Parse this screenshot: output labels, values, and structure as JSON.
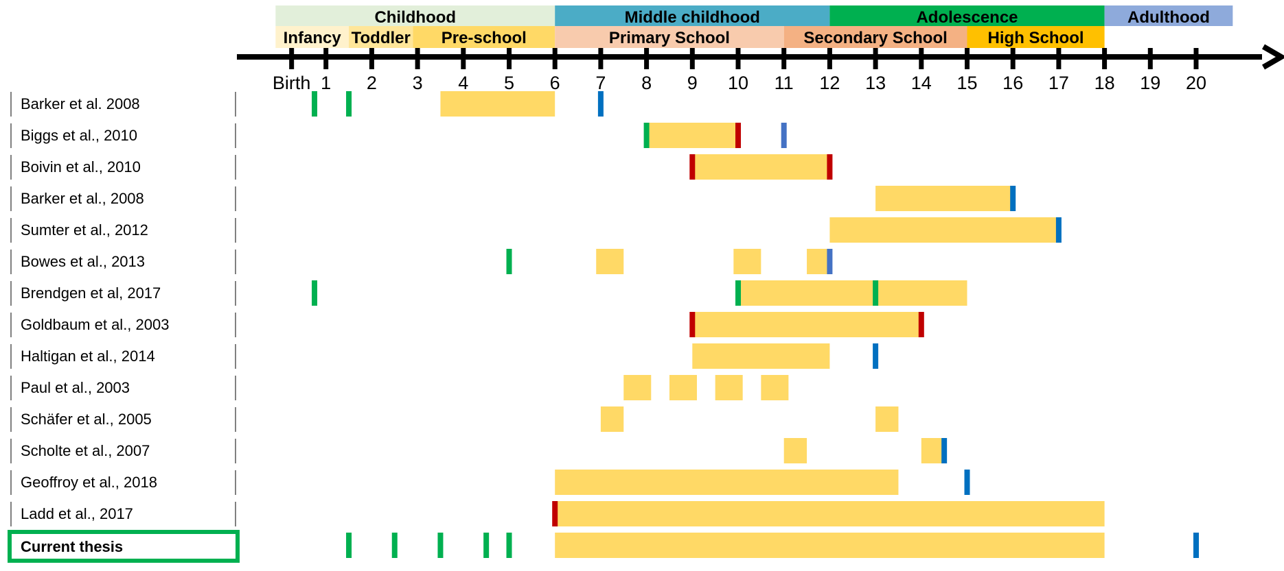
{
  "chart_data": {
    "type": "timeline",
    "x_unit": "age (years)",
    "xlim": [
      0,
      21.4
    ],
    "ticks": [
      {
        "value": 0.25,
        "label": "Birth"
      },
      {
        "value": 1,
        "label": "1"
      },
      {
        "value": 2,
        "label": "2"
      },
      {
        "value": 3,
        "label": "3"
      },
      {
        "value": 4,
        "label": "4"
      },
      {
        "value": 5,
        "label": "5"
      },
      {
        "value": 6,
        "label": "6"
      },
      {
        "value": 7,
        "label": "7"
      },
      {
        "value": 8,
        "label": "8"
      },
      {
        "value": 9,
        "label": "9"
      },
      {
        "value": 10,
        "label": "10"
      },
      {
        "value": 11,
        "label": "11"
      },
      {
        "value": 12,
        "label": "12"
      },
      {
        "value": 13,
        "label": "13"
      },
      {
        "value": 14,
        "label": "14"
      },
      {
        "value": 15,
        "label": "15"
      },
      {
        "value": 16,
        "label": "16"
      },
      {
        "value": 17,
        "label": "17"
      },
      {
        "value": 18,
        "label": "18"
      },
      {
        "value": 19,
        "label": "19"
      },
      {
        "value": 20,
        "label": "20"
      }
    ],
    "stages": [
      {
        "label": "Childhood",
        "start": -0.1,
        "end": 6.0,
        "color": "#e2efda"
      },
      {
        "label": "Middle childhood",
        "start": 6.0,
        "end": 12.0,
        "color": "#4bacc6"
      },
      {
        "label": "Adolescence",
        "start": 12.0,
        "end": 18.0,
        "color": "#00b050"
      },
      {
        "label": "Adulthood",
        "start": 18.0,
        "end": 20.8,
        "color": "#8eaadb"
      }
    ],
    "substages": [
      {
        "label": "Infancy",
        "start": -0.1,
        "end": 1.5,
        "color": "#fff2cc"
      },
      {
        "label": "Toddler",
        "start": 1.5,
        "end": 2.9,
        "color": "#ffe699"
      },
      {
        "label": "Pre-school",
        "start": 2.9,
        "end": 6.0,
        "color": "#ffd966"
      },
      {
        "label": "Primary School",
        "start": 6.0,
        "end": 11.0,
        "color": "#f8cbad"
      },
      {
        "label": "Secondary School",
        "start": 11.0,
        "end": 15.0,
        "color": "#f4b183"
      },
      {
        "label": "High School",
        "start": 15.0,
        "end": 18.0,
        "color": "#ffc000"
      }
    ],
    "marker_colors": {
      "green": "#00b050",
      "red": "#c00000",
      "blue": "#0070c0",
      "lightblue": "#4472c4",
      "bar": "#ffd966"
    },
    "studies": [
      {
        "label": "Barker et al. 2008",
        "bars": [
          [
            3.5,
            6.0
          ]
        ],
        "markers": [
          [
            0.75,
            "green"
          ],
          [
            1.5,
            "green"
          ],
          [
            7.0,
            "blue"
          ]
        ]
      },
      {
        "label": "Biggs et al., 2010",
        "bars": [
          [
            8.0,
            10.0
          ]
        ],
        "markers": [
          [
            8.0,
            "green"
          ],
          [
            10.0,
            "red"
          ],
          [
            11.0,
            "lightblue"
          ]
        ]
      },
      {
        "label": "Boivin et al., 2010",
        "bars": [
          [
            9.0,
            12.0
          ]
        ],
        "markers": [
          [
            9.0,
            "red"
          ],
          [
            12.0,
            "red"
          ]
        ]
      },
      {
        "label": "Barker et al., 2008",
        "bars": [
          [
            13.0,
            16.0
          ]
        ],
        "markers": [
          [
            16.0,
            "blue"
          ]
        ]
      },
      {
        "label": "Sumter et al., 2012",
        "bars": [
          [
            12.0,
            17.0
          ]
        ],
        "markers": [
          [
            17.0,
            "blue"
          ]
        ]
      },
      {
        "label": "Bowes et al., 2013",
        "bars": [
          [
            6.9,
            7.5
          ],
          [
            9.9,
            10.5
          ],
          [
            11.5,
            12.0
          ]
        ],
        "markers": [
          [
            5.0,
            "green"
          ],
          [
            12.0,
            "lightblue"
          ]
        ]
      },
      {
        "label": "Brendgen et al, 2017",
        "bars": [
          [
            10.0,
            15.0
          ]
        ],
        "markers": [
          [
            0.75,
            "green"
          ],
          [
            10.0,
            "green"
          ],
          [
            13.0,
            "green"
          ]
        ]
      },
      {
        "label": "Goldbaum et al., 2003",
        "bars": [
          [
            9.0,
            14.0
          ]
        ],
        "markers": [
          [
            9.0,
            "red"
          ],
          [
            14.0,
            "red"
          ]
        ]
      },
      {
        "label": "Haltigan et al., 2014",
        "bars": [
          [
            9.0,
            12.0
          ]
        ],
        "markers": [
          [
            13.0,
            "blue"
          ]
        ]
      },
      {
        "label": "Paul et al., 2003",
        "bars": [
          [
            7.5,
            8.1
          ],
          [
            8.5,
            9.1
          ],
          [
            9.5,
            10.1
          ],
          [
            10.5,
            11.1
          ]
        ],
        "markers": []
      },
      {
        "label": "Schäfer et al., 2005",
        "bars": [
          [
            7.0,
            7.5
          ],
          [
            13.0,
            13.5
          ]
        ],
        "markers": []
      },
      {
        "label": "Scholte et al., 2007",
        "bars": [
          [
            11.0,
            11.5
          ],
          [
            14.0,
            14.5
          ]
        ],
        "markers": [
          [
            14.5,
            "blue"
          ]
        ]
      },
      {
        "label": "Geoffroy et al., 2018",
        "bars": [
          [
            6.0,
            13.5
          ]
        ],
        "markers": [
          [
            15.0,
            "blue"
          ]
        ]
      },
      {
        "label": "Ladd et al., 2017",
        "bars": [
          [
            6.0,
            18.0
          ]
        ],
        "markers": [
          [
            6.0,
            "red"
          ]
        ]
      },
      {
        "label": "Current thesis",
        "highlight": true,
        "bars": [
          [
            6.0,
            18.0
          ]
        ],
        "markers": [
          [
            1.5,
            "green"
          ],
          [
            2.5,
            "green"
          ],
          [
            3.5,
            "green"
          ],
          [
            4.5,
            "green"
          ],
          [
            5.0,
            "green"
          ],
          [
            20.0,
            "blue"
          ]
        ]
      }
    ]
  }
}
